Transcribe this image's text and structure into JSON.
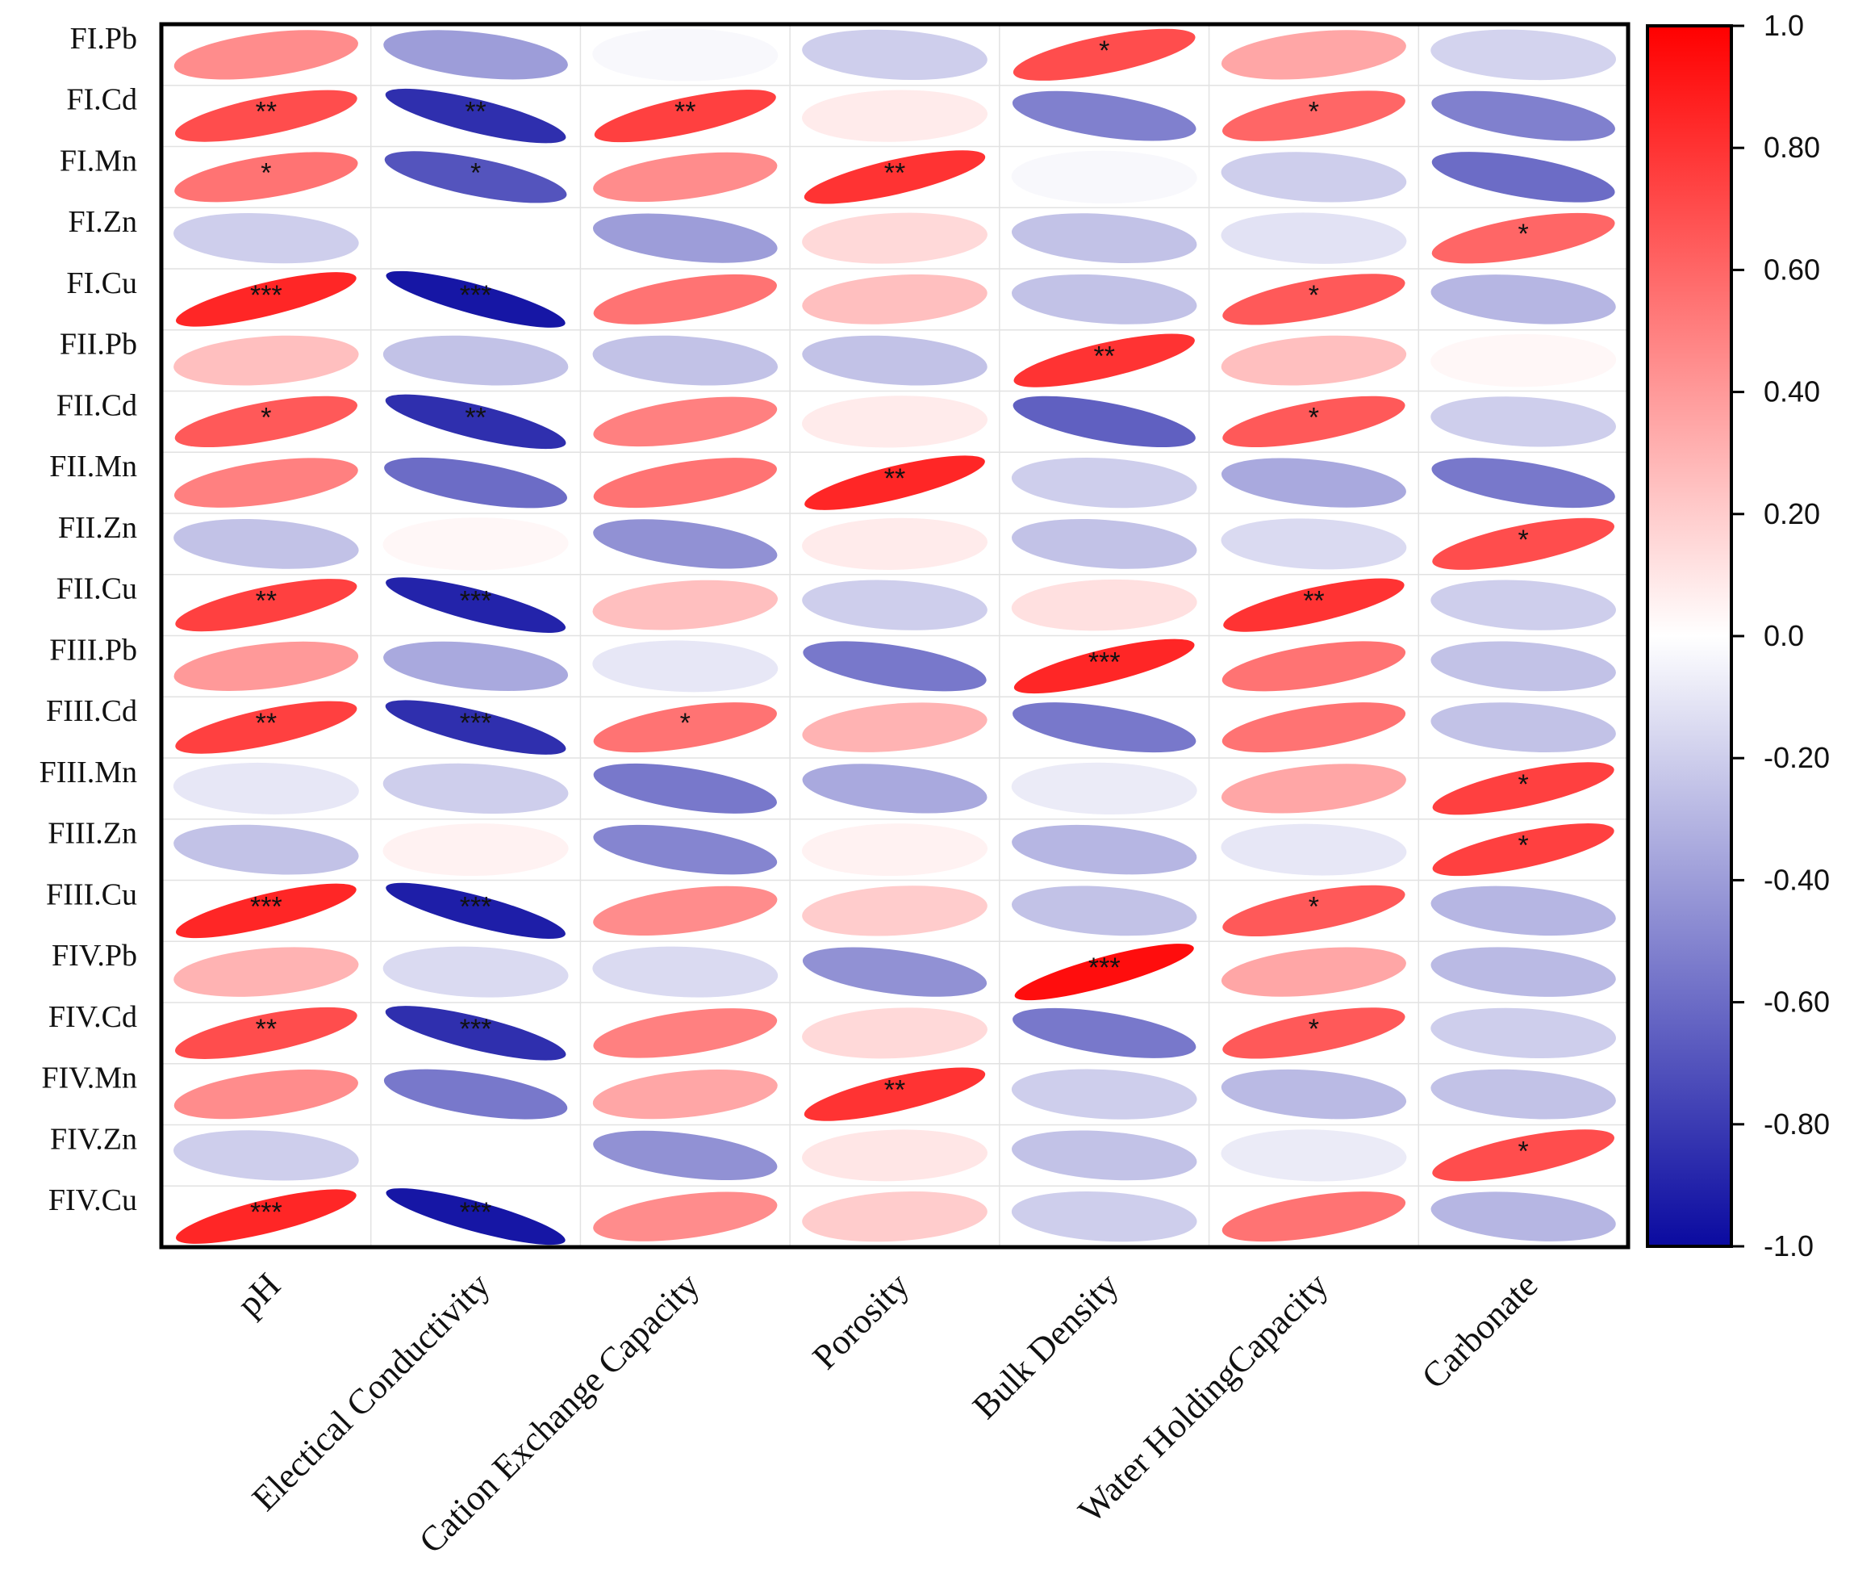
{
  "chart_data": {
    "type": "heatmap",
    "title": "",
    "xlabel": "",
    "ylabel": "",
    "columns": [
      "pH",
      "Electical Conductivity",
      "Cation Exchange Capacity",
      "Porosity",
      "Bulk Density",
      "Water HoldingCapacity",
      "Carbonate"
    ],
    "rows": [
      "FI.Pb",
      "FI.Cd",
      "FI.Mn",
      "FI.Zn",
      "FI.Cu",
      "FII.Pb",
      "FII.Cd",
      "FII.Mn",
      "FII.Zn",
      "FII.Cu",
      "FIII.Pb",
      "FIII.Cd",
      "FIII.Mn",
      "FIII.Zn",
      "FIII.Cu",
      "FIV.Pb",
      "FIV.Cd",
      "FIV.Mn",
      "FIV.Zn",
      "FIV.Cu"
    ],
    "values": [
      [
        0.45,
        -0.4,
        -0.03,
        -0.2,
        0.7,
        0.35,
        -0.18
      ],
      [
        0.7,
        -0.85,
        0.75,
        0.08,
        -0.52,
        0.6,
        -0.52
      ],
      [
        0.55,
        -0.7,
        0.45,
        0.8,
        -0.03,
        -0.2,
        -0.6
      ],
      [
        -0.2,
        0.0,
        -0.4,
        0.15,
        -0.25,
        -0.12,
        0.6
      ],
      [
        0.85,
        -0.95,
        0.55,
        0.25,
        -0.25,
        0.65,
        -0.3
      ],
      [
        0.25,
        -0.25,
        -0.25,
        -0.25,
        0.8,
        0.25,
        0.03
      ],
      [
        0.65,
        -0.85,
        0.5,
        0.08,
        -0.65,
        0.65,
        -0.2
      ],
      [
        0.5,
        -0.6,
        0.55,
        0.85,
        -0.2,
        -0.35,
        -0.55
      ],
      [
        -0.25,
        0.03,
        -0.45,
        0.08,
        -0.25,
        -0.15,
        0.7
      ],
      [
        0.75,
        -0.9,
        0.25,
        -0.2,
        0.12,
        0.8,
        -0.2
      ],
      [
        0.4,
        -0.35,
        -0.1,
        -0.55,
        0.85,
        0.55,
        -0.25
      ],
      [
        0.75,
        -0.85,
        0.55,
        0.3,
        -0.55,
        0.55,
        -0.25
      ],
      [
        -0.1,
        -0.2,
        -0.55,
        -0.35,
        -0.08,
        0.35,
        0.75
      ],
      [
        -0.25,
        0.05,
        -0.5,
        0.05,
        -0.3,
        -0.1,
        0.75
      ],
      [
        0.85,
        -0.92,
        0.45,
        0.2,
        -0.25,
        0.65,
        -0.3
      ],
      [
        0.3,
        -0.15,
        -0.15,
        -0.45,
        0.95,
        0.35,
        -0.28
      ],
      [
        0.7,
        -0.85,
        0.5,
        0.15,
        -0.55,
        0.65,
        -0.2
      ],
      [
        0.45,
        -0.55,
        0.35,
        0.8,
        -0.2,
        -0.28,
        -0.25
      ],
      [
        -0.2,
        0.0,
        -0.45,
        0.1,
        -0.25,
        -0.08,
        0.7
      ],
      [
        0.85,
        -0.95,
        0.45,
        0.2,
        -0.2,
        0.55,
        -0.3
      ]
    ],
    "significance": [
      [
        "",
        "",
        "",
        "",
        "*",
        "",
        ""
      ],
      [
        "**",
        "**",
        "**",
        "",
        "",
        "*",
        ""
      ],
      [
        "*",
        "*",
        "",
        "**",
        "",
        "",
        ""
      ],
      [
        "",
        "",
        "",
        "",
        "",
        "",
        "*"
      ],
      [
        "***",
        "***",
        "",
        "",
        "",
        "*",
        ""
      ],
      [
        "",
        "",
        "",
        "",
        "**",
        "",
        ""
      ],
      [
        "*",
        "**",
        "",
        "",
        "",
        "*",
        ""
      ],
      [
        "",
        "",
        "",
        "**",
        "",
        "",
        ""
      ],
      [
        "",
        "",
        "",
        "",
        "",
        "",
        "*"
      ],
      [
        "**",
        "***",
        "",
        "",
        "",
        "**",
        ""
      ],
      [
        "",
        "",
        "",
        "",
        "***",
        "",
        ""
      ],
      [
        "**",
        "***",
        "*",
        "",
        "",
        "",
        ""
      ],
      [
        "",
        "",
        "",
        "",
        "",
        "",
        "*"
      ],
      [
        "",
        "",
        "",
        "",
        "",
        "",
        "*"
      ],
      [
        "***",
        "***",
        "",
        "",
        "",
        "*",
        ""
      ],
      [
        "",
        "",
        "",
        "",
        "***",
        "",
        ""
      ],
      [
        "**",
        "***",
        "",
        "",
        "",
        "*",
        ""
      ],
      [
        "",
        "",
        "",
        "**",
        "",
        "",
        ""
      ],
      [
        "",
        "",
        "",
        "",
        "",
        "",
        "*"
      ],
      [
        "***",
        "***",
        "",
        "",
        "",
        "",
        ""
      ]
    ],
    "colorbar": {
      "range": [
        -1,
        1
      ],
      "ticks": [
        "1.0",
        "0.80",
        "0.60",
        "0.40",
        "0.20",
        "0.0",
        "-0.20",
        "-0.40",
        "-0.60",
        "-0.80",
        "-1.0"
      ],
      "colors": {
        "negative": "#0a0aa0",
        "neutral": "#ffffff",
        "positive": "#ff0000"
      }
    },
    "grid": true
  }
}
